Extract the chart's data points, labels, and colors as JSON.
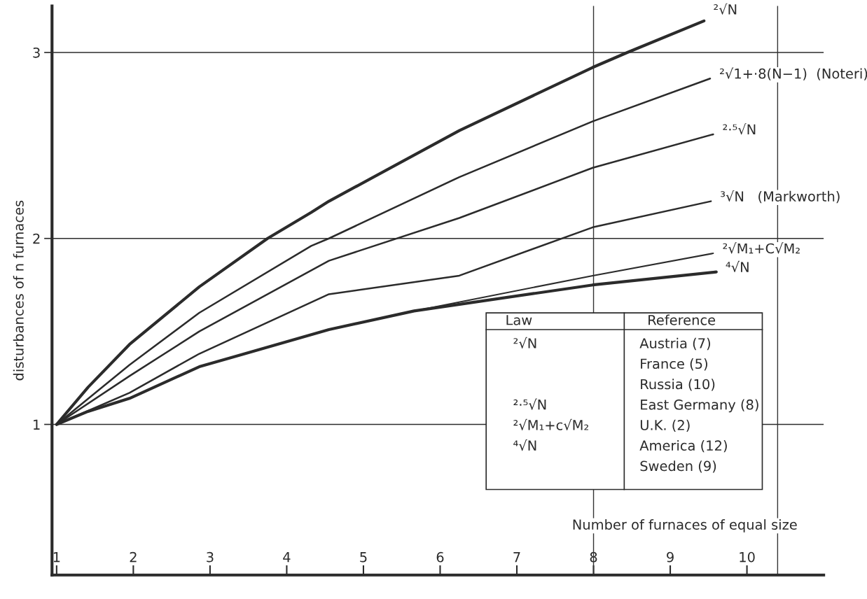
{
  "chart_data": {
    "type": "line",
    "xlabel": "Number of furnaces of equal size",
    "ylabel": "disturbances of n furnaces",
    "xlim": [
      0.94,
      11
    ],
    "ylim": [
      0.19,
      3.25
    ],
    "xticks": [
      1,
      2,
      3,
      4,
      5,
      6,
      7,
      8,
      9,
      10
    ],
    "yticks": [
      1,
      2,
      3
    ],
    "grid": "y",
    "legend": false,
    "marker": "none",
    "line_style": "solid",
    "ref_lines": [
      {
        "axis": "x",
        "value": 8,
        "color": "#333333"
      },
      {
        "axis": "x",
        "value": 10.4,
        "color": "#333333"
      }
    ],
    "series": [
      {
        "name": "²√N",
        "color": "#2b2b2b",
        "x": [
          1,
          1.41,
          1.95,
          2.86,
          3.75,
          4.32,
          4.55,
          6.25,
          7.99,
          8.44,
          9.44
        ],
        "values": [
          1,
          1.2,
          1.43,
          1.74,
          2.0,
          2.14,
          2.2,
          2.58,
          2.92,
          3.0,
          3.17
        ]
      },
      {
        "name": "²√1+·8(N−1)  (Noteri)",
        "color": "#2b2b2b",
        "x": [
          1,
          1.95,
          2.86,
          4.32,
          4.55,
          6.25,
          7.99,
          9.52
        ],
        "values": [
          1,
          1.32,
          1.6,
          1.96,
          2.0,
          2.33,
          2.63,
          2.86
        ]
      },
      {
        "name": "²·⁵√N",
        "color": "#2b2b2b",
        "x": [
          1,
          1.95,
          2.86,
          4.55,
          6.25,
          7.99,
          9.56
        ],
        "values": [
          1,
          1.26,
          1.5,
          1.88,
          2.11,
          2.38,
          2.56
        ]
      },
      {
        "name": "³√N   (Markworth)",
        "color": "#2b2b2b",
        "x": [
          1,
          1.95,
          2.86,
          4.55,
          6.25,
          7.99,
          9.53
        ],
        "values": [
          1,
          1.17,
          1.38,
          1.7,
          1.8,
          2.06,
          2.2
        ]
      },
      {
        "name": "²√M₁+C√M₂",
        "color": "#2b2b2b",
        "x": [
          1,
          1.41,
          1.95,
          2.86,
          4.55,
          5.66,
          7.99,
          9.56
        ],
        "values": [
          1,
          1.07,
          1.14,
          1.31,
          1.51,
          1.61,
          1.8,
          1.92
        ]
      },
      {
        "name": "⁴√N",
        "color": "#2b2b2b",
        "x": [
          1,
          1.41,
          1.95,
          2.86,
          4.55,
          5.66,
          7.99,
          9.6
        ],
        "values": [
          1,
          1.07,
          1.14,
          1.31,
          1.51,
          1.61,
          1.75,
          1.82
        ]
      }
    ],
    "annotations": [
      "Law",
      "Reference",
      "²√N",
      "²·⁵√N",
      "²√M₁+c√M₂",
      "⁴√N",
      "Austria (7)",
      "France (5)",
      "Russia (10)",
      "East Germany (8)",
      "U.K. (2)",
      "America (12)",
      "Sweden (9)"
    ]
  }
}
